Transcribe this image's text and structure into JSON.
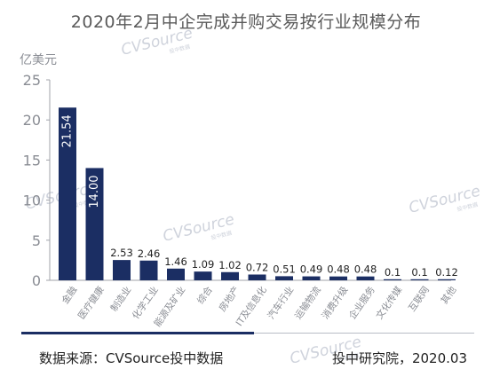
{
  "chart_data": {
    "type": "bar",
    "title": "2020年2月中企完成并购交易按行业规模分布",
    "ylabel": "亿美元",
    "xlabel": "",
    "ylim": [
      0,
      25
    ],
    "yticks": [
      0,
      5,
      10,
      15,
      20,
      25
    ],
    "grid": false,
    "legend": "none",
    "categories": [
      "金融",
      "医疗健康",
      "制造业",
      "化学工业",
      "能源及矿业",
      "综合",
      "房地产",
      "IT及信息化",
      "汽车行业",
      "运输物流",
      "消费升级",
      "企业服务",
      "文化传媒",
      "互联网",
      "其他"
    ],
    "values": [
      21.54,
      14.0,
      2.53,
      2.46,
      1.46,
      1.09,
      1.02,
      0.72,
      0.51,
      0.49,
      0.48,
      0.48,
      0.1,
      0.1,
      0.12
    ],
    "value_labels": [
      "21.54",
      "14.00",
      "2.53",
      "2.46",
      "1.46",
      "1.09",
      "1.02",
      "0.72",
      "0.51",
      "0.49",
      "0.48",
      "0.48",
      "0.1",
      "0.1",
      "0.12"
    ],
    "bar_color": "#1b2e63",
    "axis_color": "#a0a3aa",
    "tick_label_color": "#8a8d94"
  },
  "footer": {
    "source": "数据来源：CVSource投中数据",
    "publisher": "投中研究院，2020.03"
  },
  "watermark": {
    "brand": "CVSource",
    "sub": "投中数据",
    "color": "#cfd3dc"
  }
}
